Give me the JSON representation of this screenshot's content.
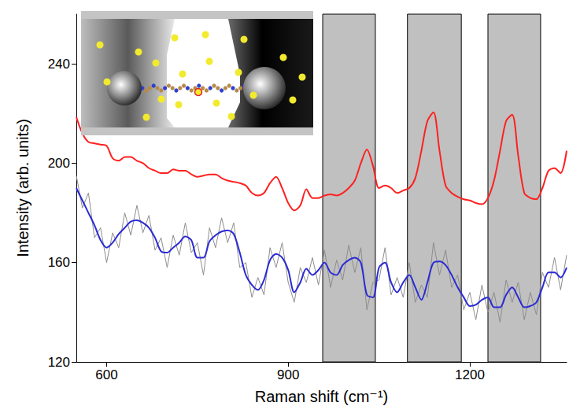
{
  "chart_data": {
    "type": "line",
    "x_label": "Raman shift (cm⁻¹)",
    "y_label": "Intensity (arb. units)",
    "x": [
      550,
      560,
      570,
      580,
      590,
      600,
      610,
      620,
      630,
      640,
      650,
      660,
      670,
      680,
      690,
      700,
      710,
      720,
      730,
      740,
      750,
      760,
      770,
      780,
      790,
      800,
      810,
      820,
      830,
      840,
      850,
      860,
      870,
      880,
      890,
      900,
      910,
      920,
      930,
      940,
      950,
      960,
      970,
      980,
      990,
      1000,
      1010,
      1020,
      1030,
      1040,
      1050,
      1060,
      1070,
      1080,
      1090,
      1100,
      1110,
      1120,
      1130,
      1140,
      1150,
      1160,
      1170,
      1180,
      1190,
      1200,
      1210,
      1220,
      1230,
      1240,
      1250,
      1260,
      1270,
      1280,
      1290,
      1300,
      1310,
      1320,
      1330,
      1340,
      1350,
      1360
    ],
    "series": [
      {
        "color": "#ff2020",
        "values": [
          218.6,
          212,
          208.5,
          208,
          207.5,
          207,
          202,
          201,
          202.5,
          202.5,
          201,
          200,
          198,
          197,
          196,
          196,
          197.5,
          197,
          197,
          195.5,
          194.5,
          195,
          195.5,
          195.5,
          194,
          193,
          192.5,
          192,
          191,
          188,
          187,
          188,
          192,
          194.5,
          190,
          184,
          181,
          183,
          189.5,
          186,
          186,
          187,
          187.5,
          187,
          188,
          190,
          193,
          200,
          205.5,
          199,
          190,
          191,
          190,
          188,
          189,
          190,
          194,
          205,
          217,
          220.5,
          205,
          191,
          188,
          186.5,
          185.5,
          185,
          184,
          183.5,
          186,
          193,
          205,
          217,
          219.5,
          203,
          188,
          186,
          185.5,
          190,
          197,
          198,
          196,
          205
        ]
      },
      {
        "color": "#8c8c8c",
        "values": [
          195,
          182,
          188,
          170,
          174,
          160,
          172,
          166,
          180,
          171,
          183,
          172,
          179,
          165,
          170,
          158,
          171,
          163,
          176,
          164,
          168,
          155,
          174,
          166,
          178,
          168,
          176,
          158,
          160,
          146,
          154,
          147,
          166,
          158,
          168,
          152,
          144,
          158,
          152,
          162,
          151,
          165,
          150,
          161,
          153,
          167,
          156,
          166,
          141,
          152,
          153,
          166,
          147,
          154,
          146,
          160,
          144,
          151,
          146,
          168,
          155,
          165,
          150,
          155,
          141,
          148,
          137,
          151,
          140,
          148,
          136,
          153,
          144,
          152,
          137,
          148,
          139,
          156,
          150,
          162,
          149,
          163
        ]
      },
      {
        "color": "#2a2ad6",
        "values": [
          190,
          185,
          180,
          175,
          169,
          166,
          168,
          171.5,
          174,
          176.5,
          177,
          176,
          174,
          170,
          164.5,
          164,
          166,
          168,
          170.5,
          169,
          162,
          162,
          168.5,
          171,
          172.5,
          173,
          171.5,
          164,
          155,
          151,
          149,
          153,
          161,
          163.5,
          162,
          157,
          148,
          152,
          157.5,
          155,
          157,
          160,
          156,
          155,
          159,
          161,
          162,
          160,
          147,
          146,
          158,
          160,
          152,
          148,
          152,
          155,
          150,
          145,
          152,
          160,
          160.5,
          159,
          155,
          150,
          146,
          142.5,
          143,
          145,
          146,
          142,
          142,
          147,
          150,
          146,
          142,
          142.5,
          144,
          150,
          156,
          156,
          154,
          158
        ]
      }
    ],
    "bands": [
      [
        957,
        1044
      ],
      [
        1097,
        1186
      ],
      [
        1230,
        1317
      ]
    ],
    "xlim": [
      550,
      1360
    ],
    "ylim": [
      120,
      260
    ],
    "xticks": [
      600,
      900,
      1200
    ],
    "yticks": [
      120,
      160,
      200,
      240
    ],
    "grid": false
  }
}
